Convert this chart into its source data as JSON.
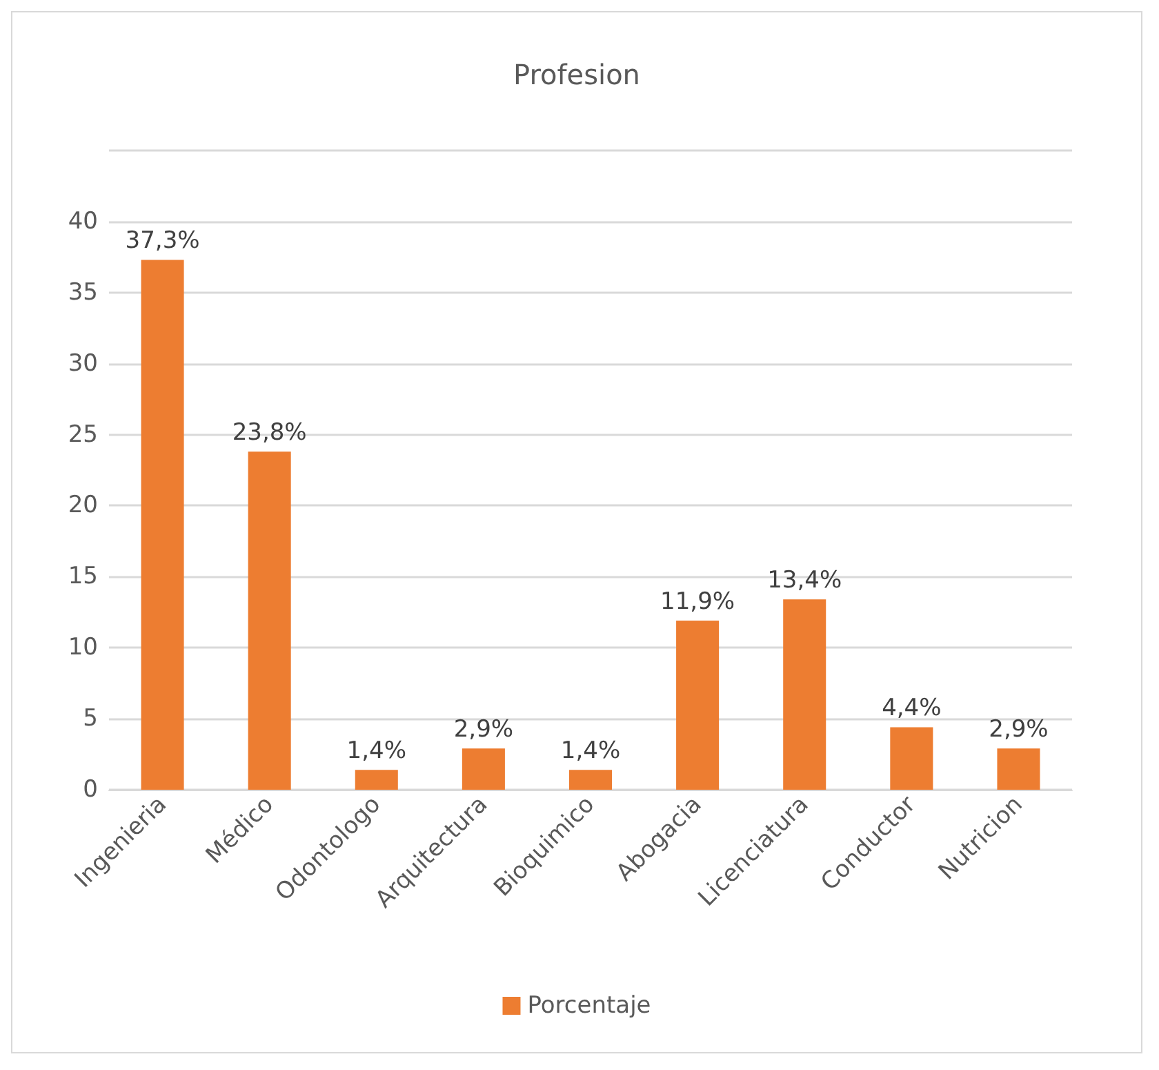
{
  "chart_data": {
    "type": "bar",
    "title": "Profesion",
    "categories": [
      "Ingenieria",
      "Médico",
      "Odontologo",
      "Arquitectura",
      "Bioquimico",
      "Abogacia",
      "Licenciatura",
      "Conductor",
      "Nutricion"
    ],
    "series": [
      {
        "name": "Porcentaje",
        "color": "#ed7d31",
        "values": [
          37.3,
          23.8,
          1.4,
          2.9,
          1.4,
          11.9,
          13.4,
          4.4,
          2.9
        ],
        "value_labels": [
          "37,3%",
          "23,8%",
          "1,4%",
          "2,9%",
          "1,4%",
          "11,9%",
          "13,4%",
          "4,4%",
          "2,9%"
        ]
      }
    ],
    "ylim": [
      0,
      45
    ],
    "yticks": [
      0,
      5,
      10,
      15,
      20,
      25,
      30,
      35,
      40,
      {
        "value": 45,
        "label": null
      }
    ],
    "grid": "y",
    "legend": "bottom"
  }
}
